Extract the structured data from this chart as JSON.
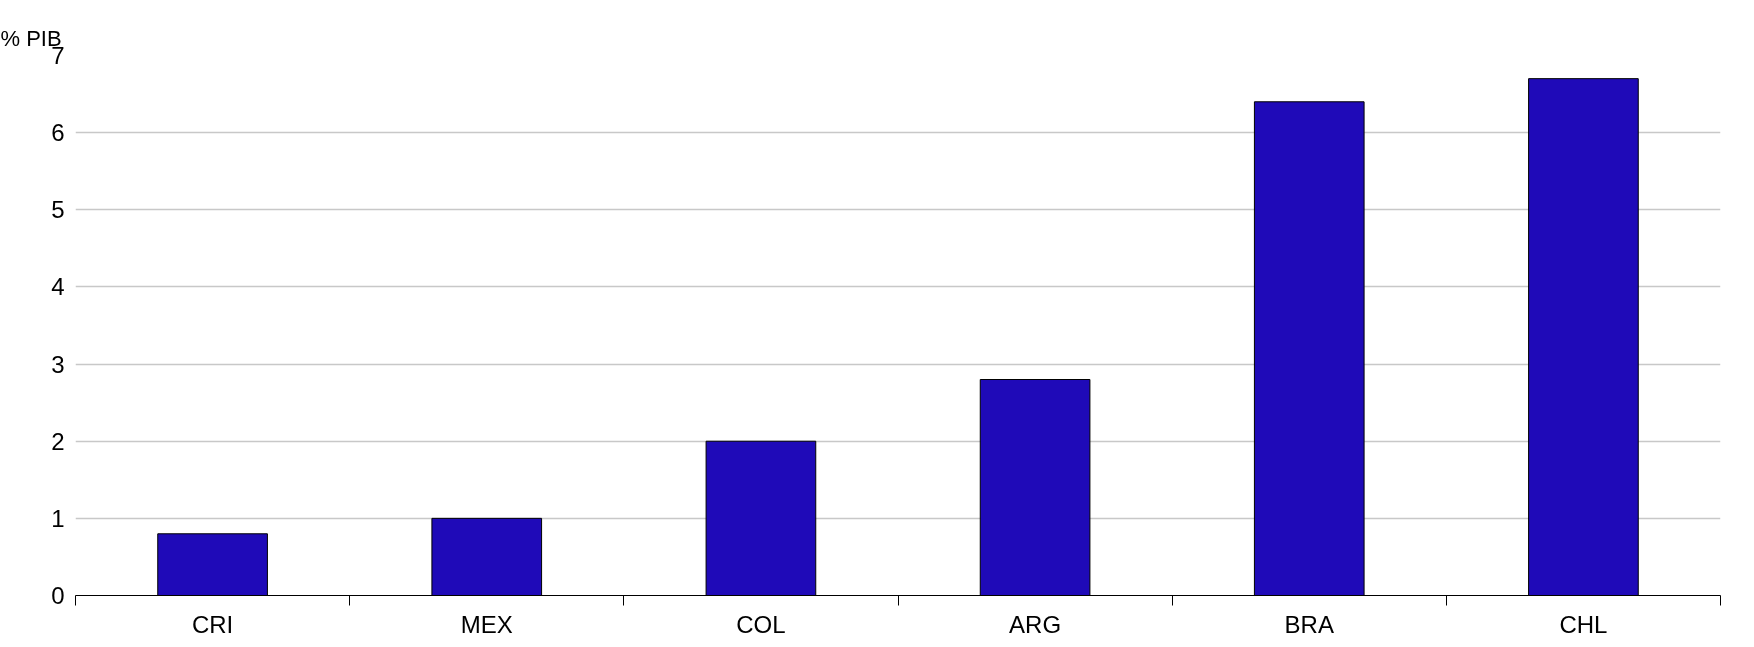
{
  "chart_data": {
    "type": "bar",
    "ylabel": "% PIB",
    "categories": [
      "CRI",
      "MEX",
      "COL",
      "ARG",
      "BRA",
      "CHL"
    ],
    "values": [
      0.8,
      1.0,
      2.0,
      2.8,
      6.4,
      6.7
    ],
    "color": "#1f0ab8",
    "ylim": [
      0,
      7
    ],
    "yticks": [
      0,
      1,
      2,
      3,
      4,
      5,
      6,
      7
    ],
    "grid": "y"
  }
}
